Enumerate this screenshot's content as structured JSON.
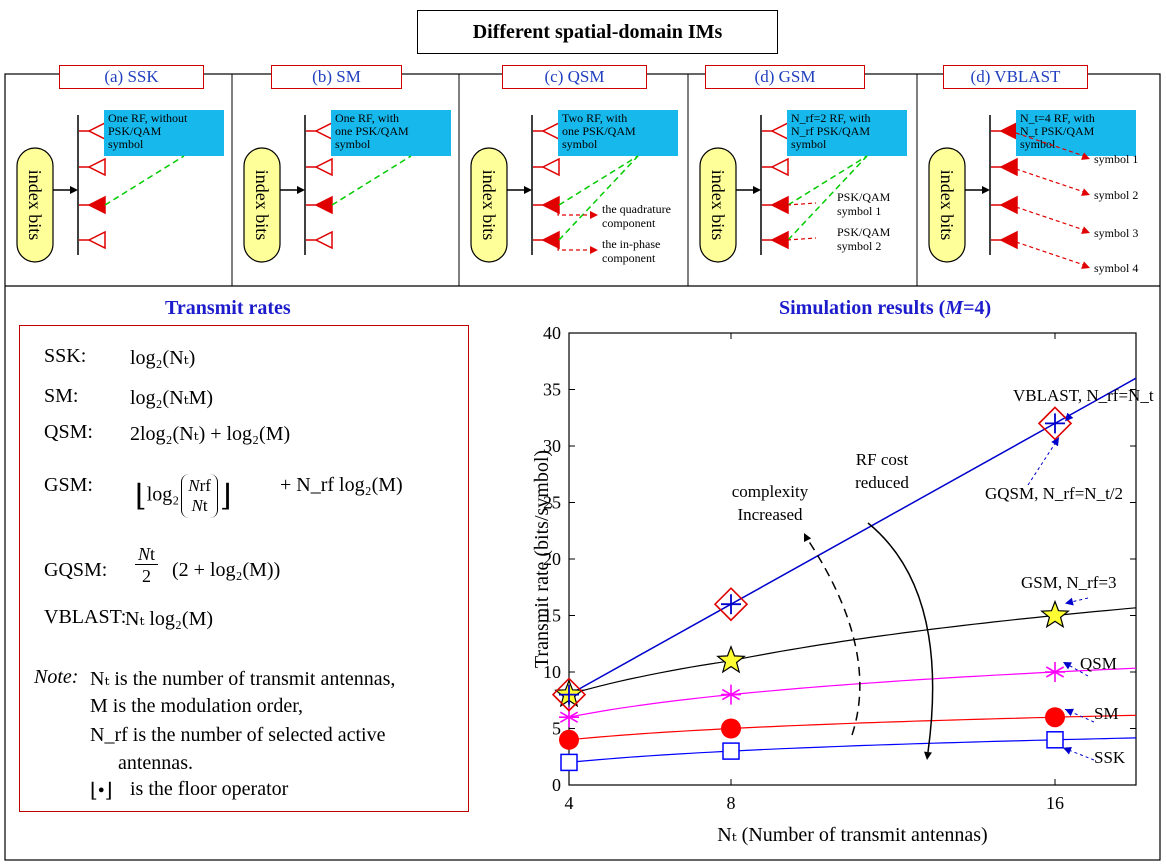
{
  "title": "Different spatial-domain IMs",
  "panels": [
    {
      "label": "(a) SSK",
      "callout": [
        "One RF, without",
        "PSK/QAM",
        "symbol"
      ]
    },
    {
      "label": "(b) SM",
      "callout": [
        "One RF, with",
        "one PSK/QAM",
        "symbol"
      ]
    },
    {
      "label": "(c) QSM",
      "callout": [
        "Two RF, with",
        "one PSK/QAM",
        "symbol"
      ],
      "notes": [
        "the quadrature",
        "component",
        "the in-phase",
        "component"
      ]
    },
    {
      "label": "(d) GSM",
      "callout": [
        "N_rf=2 RF, with",
        "N_rf PSK/QAM",
        "symbol"
      ],
      "notes": [
        "PSK/QAM",
        "symbol 1",
        "PSK/QAM",
        "symbol 2"
      ]
    },
    {
      "label": "(d) VBLAST",
      "callout": [
        "N_t=4 RF, with",
        "N_t PSK/QAM",
        "symbol"
      ],
      "notes": [
        "symbol 1",
        "symbol 2",
        "symbol 3",
        "symbol 4"
      ]
    }
  ],
  "index_label": "index bits",
  "rates_title": "Transmit rates",
  "rates": {
    "ssk": "SSK:",
    "sm": "SM:",
    "qsm": "QSM:",
    "gsm": "GSM:",
    "gqsm": "GQSM:",
    "vblast": "VBLAST:",
    "ssk_f": "log₂(Nₜ)",
    "sm_f": "log₂(NₜM)",
    "qsm_f": "2log₂(Nₜ) + log₂(M)",
    "gsm_f": "+ N_rf log₂(M)",
    "gqsm_f": "(2 + log₂(M))",
    "vblast_f": "Nₜ log₂(M)"
  },
  "notes": {
    "prefix": "Note:",
    "l1": "Nₜ  is the number of transmit antennas,",
    "l2": "M   is the modulation order,",
    "l3": "N_rf  is the number of selected active",
    "l4": "antennas.",
    "l5": "is the floor operator"
  },
  "chart_title": "Simulation results (M=4)",
  "chart_data": {
    "type": "line",
    "x": [
      4,
      8,
      16
    ],
    "xlabel": "Nₜ (Number of transmit antennas)",
    "ylabel": "Transmit rate (bits/symbol)",
    "xlim": [
      4,
      18
    ],
    "ylim": [
      0,
      40
    ],
    "xticks": [
      "4",
      "8",
      "16"
    ],
    "yticks": [
      "0",
      "5",
      "10",
      "15",
      "20",
      "25",
      "30",
      "35",
      "40"
    ],
    "series": [
      {
        "name": "VBLAST, N_rf=N_t",
        "values": [
          8,
          16,
          32
        ],
        "color": "#0000cc",
        "marker": "plus"
      },
      {
        "name": "GQSM, N_rf=N_t/2",
        "values": [
          8,
          16,
          32
        ],
        "color": "#e00000",
        "marker": "diamond"
      },
      {
        "name": "GSM, N_rf=3",
        "values": [
          8,
          11,
          15
        ],
        "color": "#000000",
        "marker": "star"
      },
      {
        "name": "QSM",
        "values": [
          6,
          8,
          10
        ],
        "color": "#ff00ff",
        "marker": "asterisk"
      },
      {
        "name": "SM",
        "values": [
          4,
          5,
          6
        ],
        "color": "#ff0000",
        "marker": "circle"
      },
      {
        "name": "SSK",
        "values": [
          2,
          3,
          4
        ],
        "color": "#0000ff",
        "marker": "square"
      }
    ],
    "annotations": [
      "complexity",
      "Increased",
      "RF cost",
      "reduced"
    ]
  }
}
